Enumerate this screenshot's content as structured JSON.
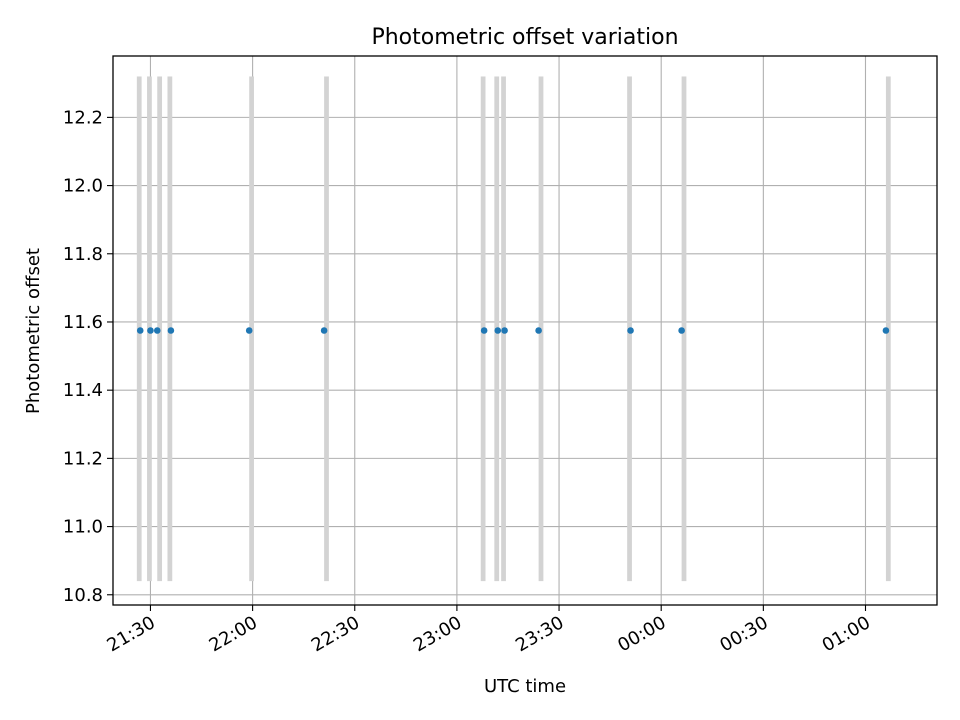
{
  "chart_data": {
    "type": "scatter",
    "title": "Photometric offset variation",
    "xlabel": "UTC time",
    "ylabel": "Photometric offset",
    "x_axis": {
      "kind": "time",
      "range": [
        "21:19",
        "01:21"
      ],
      "ticks": [
        "21:30",
        "22:00",
        "22:30",
        "23:00",
        "23:30",
        "00:00",
        "00:30",
        "01:00"
      ]
    },
    "y_axis": {
      "range": [
        10.77,
        12.38
      ],
      "ticks": [
        "10.8",
        "11.0",
        "11.2",
        "11.4",
        "11.6",
        "11.8",
        "12.0",
        "12.2"
      ]
    },
    "grid": true,
    "colors": {
      "points": "#1f77b4",
      "bands": "#d3d3d3",
      "grid": "#b0b0b0"
    },
    "bands": {
      "y_range": [
        10.84,
        12.32
      ],
      "start_times": [
        "21:26",
        "21:29",
        "21:32",
        "21:35",
        "21:59",
        "22:21",
        "23:07",
        "23:11",
        "23:13",
        "23:24",
        "23:50",
        "00:06",
        "01:06"
      ]
    },
    "points": [
      {
        "time": "21:27",
        "value": 11.575
      },
      {
        "time": "21:30",
        "value": 11.575
      },
      {
        "time": "21:32",
        "value": 11.575
      },
      {
        "time": "21:36",
        "value": 11.575
      },
      {
        "time": "21:59",
        "value": 11.575
      },
      {
        "time": "22:21",
        "value": 11.575
      },
      {
        "time": "23:08",
        "value": 11.575
      },
      {
        "time": "23:12",
        "value": 11.575
      },
      {
        "time": "23:14",
        "value": 11.575
      },
      {
        "time": "23:24",
        "value": 11.575
      },
      {
        "time": "23:51",
        "value": 11.575
      },
      {
        "time": "00:06",
        "value": 11.575
      },
      {
        "time": "01:06",
        "value": 11.575
      }
    ]
  }
}
